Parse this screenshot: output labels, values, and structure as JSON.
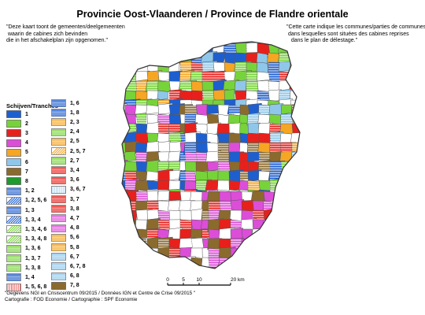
{
  "title": "Provincie Oost-Vlaanderen / Province de Flandre orientale",
  "note_nl": "\"Deze kaart toont de gemeenten/deelgemeenten\n waarin de cabines zich bevinden\ndie in het afschakelplan zijn opgenomen.\"",
  "note_fr": "\"Cette carte indique les communes/parties de communes\n dans lesquelles sont situées des cabines reprises\n   dans le plan de délestage.\"",
  "legend": {
    "heading": "Schijven/Tranches",
    "col1": [
      {
        "label": "1",
        "color": "#1e5fd0",
        "pattern": "solid"
      },
      {
        "label": "2",
        "color": "#77d33a",
        "pattern": "solid"
      },
      {
        "label": "3",
        "color": "#e8201c",
        "pattern": "solid"
      },
      {
        "label": "4",
        "color": "#dc4ed8",
        "pattern": "solid"
      },
      {
        "label": "5",
        "color": "#f5a623",
        "pattern": "solid"
      },
      {
        "label": "6",
        "color": "#8fc7ea",
        "pattern": "solid"
      },
      {
        "label": "7",
        "color": "#8b6a2e",
        "pattern": "solid"
      },
      {
        "label": "8",
        "color": "#1f9a2d",
        "pattern": "solid"
      },
      {
        "label": "1, 2",
        "color": "#1e5fd0",
        "pattern": "hlines"
      },
      {
        "label": "1, 2, 5, 6",
        "color": "#1e5fd0",
        "pattern": "diag"
      },
      {
        "label": "1, 3",
        "color": "#1e5fd0",
        "pattern": "hlines"
      },
      {
        "label": "1, 3, 4",
        "color": "#1e5fd0",
        "pattern": "diag"
      },
      {
        "label": "1, 3, 4, 6",
        "color": "#77d33a",
        "pattern": "diag"
      },
      {
        "label": "1, 3, 4, 8",
        "color": "#77d33a",
        "pattern": "diag"
      },
      {
        "label": "1, 3, 6",
        "color": "#77d33a",
        "pattern": "hlines"
      },
      {
        "label": "1, 3, 7",
        "color": "#77d33a",
        "pattern": "hlines"
      },
      {
        "label": "1, 3, 8",
        "color": "#77d33a",
        "pattern": "hlines"
      },
      {
        "label": "1, 4",
        "color": "#1e5fd0",
        "pattern": "hlines"
      },
      {
        "label": "1, 5, 6, 8",
        "color": "#e8201c",
        "pattern": "vlines"
      }
    ],
    "col2": [
      {
        "label": "1, 6",
        "color": "#1e5fd0",
        "pattern": "hlines"
      },
      {
        "label": "1, 8",
        "color": "#1e5fd0",
        "pattern": "hlines"
      },
      {
        "label": "2, 3",
        "color": "#f5a623",
        "pattern": "hlines"
      },
      {
        "label": "2, 4",
        "color": "#77d33a",
        "pattern": "hlines"
      },
      {
        "label": "2, 5",
        "color": "#f5a623",
        "pattern": "hlines"
      },
      {
        "label": "2, 5, 7",
        "color": "#f5a623",
        "pattern": "diag"
      },
      {
        "label": "2, 7",
        "color": "#77d33a",
        "pattern": "hlines"
      },
      {
        "label": "3, 4",
        "color": "#e8201c",
        "pattern": "hlines"
      },
      {
        "label": "3, 6",
        "color": "#e8201c",
        "pattern": "hlines"
      },
      {
        "label": "3, 6, 7",
        "color": "#8fc7ea",
        "pattern": "vlines"
      },
      {
        "label": "3, 7",
        "color": "#e8201c",
        "pattern": "hlines"
      },
      {
        "label": "3, 8",
        "color": "#e8201c",
        "pattern": "hlines"
      },
      {
        "label": "4, 7",
        "color": "#dc4ed8",
        "pattern": "hlines"
      },
      {
        "label": "4, 8",
        "color": "#dc4ed8",
        "pattern": "hlines"
      },
      {
        "label": "5, 6",
        "color": "#f5a623",
        "pattern": "hlines"
      },
      {
        "label": "5, 8",
        "color": "#f5a623",
        "pattern": "hlines"
      },
      {
        "label": "6, 7",
        "color": "#8fc7ea",
        "pattern": "hlines"
      },
      {
        "label": "6, 7, 8",
        "color": "#8fc7ea",
        "pattern": "hlines"
      },
      {
        "label": "6, 8",
        "color": "#8fc7ea",
        "pattern": "hlines"
      },
      {
        "label": "7, 8",
        "color": "#8b6a2e",
        "pattern": "solid"
      }
    ]
  },
  "scale": {
    "ticks": [
      "0",
      "5",
      "10",
      "20 km"
    ],
    "tick_km": [
      0,
      5,
      10,
      20
    ]
  },
  "footer": {
    "line1": "\"Gegevens NGI en Crisiscentrum 09/2015 / Données IGN et Centre de Crise 09/2015 \"",
    "line2": "Cartografie : FOD Economie / Cartographie : SPF Economie"
  },
  "map": {
    "region_colors": [
      "#1e5fd0",
      "#77d33a",
      "#e8201c",
      "#dc4ed8",
      "#f5a623",
      "#8fc7ea",
      "#8b6a2e",
      "#1f9a2d",
      "#ffffff"
    ]
  }
}
